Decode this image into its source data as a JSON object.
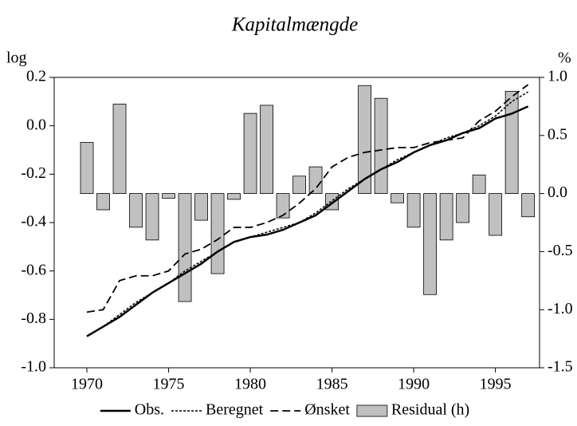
{
  "chart_data": {
    "type": "combo",
    "title": "Kapitalmængde",
    "ylabel": "log",
    "y2label": "%",
    "x": [
      1970,
      1971,
      1972,
      1973,
      1974,
      1975,
      1976,
      1977,
      1978,
      1979,
      1980,
      1981,
      1982,
      1983,
      1984,
      1985,
      1986,
      1987,
      1988,
      1989,
      1990,
      1991,
      1992,
      1993,
      1994,
      1995,
      1996,
      1997
    ],
    "xlim": [
      1968,
      1997.7
    ],
    "xticks": [
      1970,
      1975,
      1980,
      1985,
      1990,
      1995
    ],
    "ylim": [
      -1.0,
      0.2
    ],
    "yticks": [
      {
        "value": 0.2,
        "label": "0.2"
      },
      {
        "value": 0.0,
        "label": "0.0"
      },
      -0.2,
      -0.4,
      -0.6,
      -0.8,
      {
        "value": -1.0,
        "label": "-1.0"
      }
    ],
    "y2lim": [
      -1.5,
      1.0
    ],
    "y2ticks": [
      {
        "value": 1.0,
        "label": "1.0"
      },
      0.5,
      {
        "value": 0.0,
        "label": "0.0"
      },
      -0.5,
      {
        "value": -1.0,
        "label": "-1.0"
      },
      -1.5
    ],
    "series": [
      {
        "name": "Residual (h)",
        "type": "bar",
        "axis": "y2",
        "color": "#c0c0c0",
        "values": [
          0.44,
          -0.14,
          0.77,
          -0.29,
          -0.4,
          -0.04,
          -0.93,
          -0.23,
          -0.69,
          -0.05,
          0.69,
          0.76,
          -0.21,
          0.15,
          0.23,
          -0.14,
          0.0,
          0.93,
          0.82,
          -0.08,
          -0.29,
          -0.87,
          -0.4,
          -0.25,
          0.16,
          -0.36,
          0.88,
          -0.2
        ]
      },
      {
        "name": "Obs.",
        "type": "line",
        "style": "solid",
        "color": "#000000",
        "values": [
          -0.87,
          -0.83,
          -0.79,
          -0.74,
          -0.69,
          -0.65,
          -0.61,
          -0.57,
          -0.52,
          -0.48,
          -0.46,
          -0.45,
          -0.43,
          -0.4,
          -0.37,
          -0.32,
          -0.27,
          -0.22,
          -0.18,
          -0.15,
          -0.11,
          -0.08,
          -0.06,
          -0.03,
          -0.01,
          0.03,
          0.05,
          0.08
        ]
      },
      {
        "name": "Beregnet",
        "type": "line",
        "style": "dotted",
        "color": "#000000",
        "values": [
          -0.87,
          -0.83,
          -0.78,
          -0.73,
          -0.69,
          -0.65,
          -0.6,
          -0.56,
          -0.52,
          -0.48,
          -0.46,
          -0.44,
          -0.42,
          -0.4,
          -0.36,
          -0.31,
          -0.26,
          -0.22,
          -0.18,
          -0.14,
          -0.11,
          -0.08,
          -0.05,
          -0.03,
          0.0,
          0.04,
          0.1,
          0.14
        ]
      },
      {
        "name": "Ønsket",
        "type": "line",
        "style": "dashed",
        "color": "#000000",
        "values": [
          -0.77,
          -0.76,
          -0.64,
          -0.62,
          -0.62,
          -0.6,
          -0.53,
          -0.51,
          -0.47,
          -0.42,
          -0.42,
          -0.4,
          -0.37,
          -0.32,
          -0.26,
          -0.17,
          -0.13,
          -0.11,
          -0.1,
          -0.09,
          -0.09,
          -0.07,
          -0.06,
          -0.05,
          0.02,
          0.06,
          0.12,
          0.17
        ]
      }
    ]
  }
}
